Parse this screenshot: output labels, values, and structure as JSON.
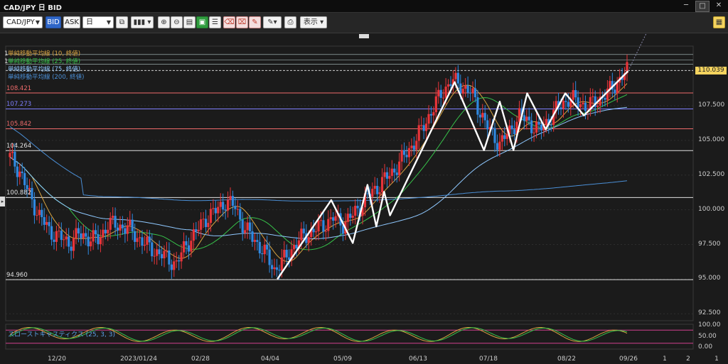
{
  "window": {
    "title": "CAD/JPY 日 BID",
    "buttons": [
      "─",
      "□",
      "✕"
    ]
  },
  "toolbar": {
    "symbol": "CAD/JPY",
    "bid": "BID",
    "ask": "ASK",
    "period": "日",
    "display_label": "表示"
  },
  "legend": [
    {
      "text": "単純移動平均線 (10, 終値)",
      "color": "#d9a441"
    },
    {
      "text": "単純移動平均線 (25, 終値)",
      "color": "#37c24a"
    },
    {
      "text": "単純移動平均線 (75, 終値)",
      "color": "#8fc8ff"
    },
    {
      "text": "単純移動平均線 (200, 終値)",
      "color": "#4b8fd6"
    }
  ],
  "price_lines": [
    {
      "label": "108.421",
      "value": 108.421,
      "color": "#ef6b6b"
    },
    {
      "label": "107.273",
      "value": 107.273,
      "color": "#7f7fff"
    },
    {
      "label": "105.842",
      "value": 105.842,
      "color": "#ef6b6b"
    },
    {
      "label": "104.264",
      "value": 104.264,
      "color": "#e0e0e0"
    },
    {
      "label": "100.882",
      "value": 100.882,
      "color": "#e0e0e0"
    },
    {
      "label": "94.960",
      "value": 94.96,
      "color": "#e0e0e0"
    }
  ],
  "current_price": {
    "label": "110.039",
    "value": 110.039,
    "color": "#f4d35e"
  },
  "y_axis": {
    "ticks": [
      "107.500",
      "105.000",
      "102.500",
      "100.000",
      "97.500",
      "95.000",
      "92.500"
    ],
    "range": [
      92.0,
      111.8
    ]
  },
  "stoch_axis": {
    "ticks": [
      "100.00",
      "50.00",
      "0.00"
    ]
  },
  "x_axis": {
    "ticks": [
      "12/20",
      "2023/01/24",
      "02/28",
      "04/04",
      "05/09",
      "06/13",
      "07/18",
      "08/22",
      "09/26"
    ],
    "tail_ticks": [
      "1",
      "2",
      "1"
    ]
  },
  "stoch_label": "スローストキャスティクス (25, 3, 3)",
  "top_labels": [
    "1",
    "1"
  ],
  "chart_data": {
    "type": "candlestick",
    "symbol": "CAD/JPY",
    "timeframe": "日",
    "ylim": [
      92.0,
      111.8
    ],
    "close_path": [
      [
        103.8,
        0
      ],
      [
        102.8,
        1
      ],
      [
        101.0,
        2
      ],
      [
        99.6,
        3
      ],
      [
        98.5,
        4
      ],
      [
        97.6,
        6
      ],
      [
        98.2,
        7
      ],
      [
        97.8,
        9
      ],
      [
        99.0,
        10
      ],
      [
        98.7,
        12
      ],
      [
        97.4,
        14
      ],
      [
        96.5,
        16
      ],
      [
        96.1,
        17
      ],
      [
        97.5,
        18
      ],
      [
        98.4,
        19
      ],
      [
        99.4,
        20
      ],
      [
        99.9,
        21
      ],
      [
        100.6,
        22
      ],
      [
        100.2,
        23
      ],
      [
        98.6,
        24
      ],
      [
        97.8,
        25
      ],
      [
        96.9,
        26
      ],
      [
        95.7,
        27
      ],
      [
        96.4,
        28
      ],
      [
        97.4,
        29
      ],
      [
        98.1,
        30
      ],
      [
        98.5,
        31
      ],
      [
        98.9,
        32
      ],
      [
        99.4,
        33
      ],
      [
        99.0,
        34
      ],
      [
        99.6,
        35
      ],
      [
        100.5,
        36
      ],
      [
        101.3,
        37
      ],
      [
        102.0,
        38
      ],
      [
        102.7,
        39
      ],
      [
        103.6,
        40
      ],
      [
        104.6,
        41
      ],
      [
        105.7,
        42
      ],
      [
        107.1,
        43
      ],
      [
        108.3,
        44
      ],
      [
        109.3,
        45
      ],
      [
        109.0,
        46
      ],
      [
        108.5,
        47
      ],
      [
        107.1,
        48
      ],
      [
        105.6,
        49
      ],
      [
        104.8,
        50
      ],
      [
        105.6,
        51
      ],
      [
        106.8,
        52
      ],
      [
        106.3,
        53
      ],
      [
        105.7,
        54
      ],
      [
        106.5,
        55
      ],
      [
        107.4,
        56
      ],
      [
        108.0,
        57
      ],
      [
        107.8,
        58
      ],
      [
        107.4,
        59
      ],
      [
        107.9,
        60
      ],
      [
        108.4,
        61
      ],
      [
        109.2,
        62
      ],
      [
        110.0,
        63
      ]
    ],
    "series": [
      {
        "name": "単純移動平均線 (10, 終値)"
      },
      {
        "name": "単純移動平均線 (25, 終値)"
      },
      {
        "name": "単純移動平均線 (75, 終値)"
      },
      {
        "name": "単純移動平均線 (200, 終値)"
      }
    ]
  }
}
